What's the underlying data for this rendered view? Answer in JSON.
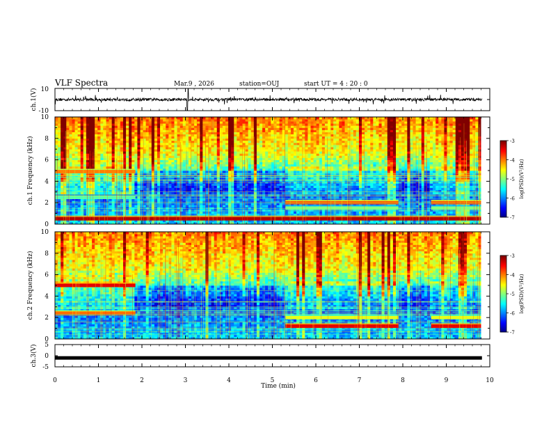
{
  "header": {
    "title": "VLF Spectra",
    "date": "Mar.9 , 2026",
    "station": "station=OUJ",
    "start_ut": "start UT = 4 : 20 : 0"
  },
  "chart_data": [
    {
      "type": "line",
      "panel": "ch1-waveform",
      "ylabel": "ch.1(V)",
      "ylim": [
        -10,
        10
      ],
      "yticks": [
        "10",
        "-10"
      ],
      "xlim": [
        0,
        10
      ],
      "trace_color": "#000000"
    },
    {
      "type": "heatmap",
      "panel": "ch1-spectrogram",
      "ylabel": "ch.1 Frequency (kHz)",
      "ylim": [
        0,
        10
      ],
      "yticks": [
        "0",
        "2",
        "4",
        "6",
        "8",
        "10"
      ],
      "xlim": [
        0,
        9.8
      ],
      "colorbar": {
        "label": "log(PSD)(V²/Hz)",
        "ticks": [
          "-3",
          "-4",
          "-5",
          "-6",
          "-7"
        ],
        "range": [
          -7,
          -3
        ]
      },
      "bands": [
        {
          "t0": 0,
          "t1": 1.85,
          "f": 4.9,
          "level": -4.0
        },
        {
          "t0": 0,
          "t1": 1.85,
          "f": 2.5,
          "level": -5.2
        },
        {
          "t0": 5.3,
          "t1": 7.9,
          "f": 2.0,
          "level": -3.8
        },
        {
          "t0": 5.3,
          "t1": 7.9,
          "f": 1.5,
          "level": -5.0
        },
        {
          "t0": 8.65,
          "t1": 9.8,
          "f": 2.0,
          "level": -3.8
        },
        {
          "t0": 8.65,
          "t1": 9.8,
          "f": 1.5,
          "level": -5.0
        },
        {
          "t0": 0,
          "t1": 9.8,
          "f": 0.5,
          "level": -3.2
        }
      ]
    },
    {
      "type": "heatmap",
      "panel": "ch2-spectrogram",
      "ylabel": "ch.2 Frequency (kHz)",
      "ylim": [
        0,
        10
      ],
      "yticks": [
        "0",
        "2",
        "4",
        "6",
        "8",
        "10"
      ],
      "xlim": [
        0,
        9.8
      ],
      "colorbar": {
        "label": "log(PSD)(V²/Hz)",
        "ticks": [
          "-3",
          "-4",
          "-5",
          "-6",
          "-7"
        ],
        "range": [
          -7,
          -3
        ]
      },
      "bands": [
        {
          "t0": 0,
          "t1": 1.85,
          "f": 5.0,
          "level": -3.4
        },
        {
          "t0": 0,
          "t1": 1.85,
          "f": 2.4,
          "level": -3.8
        },
        {
          "t0": 5.3,
          "t1": 7.9,
          "f": 2.0,
          "level": -4.6
        },
        {
          "t0": 5.3,
          "t1": 7.9,
          "f": 1.2,
          "level": -3.4
        },
        {
          "t0": 8.65,
          "t1": 9.8,
          "f": 2.0,
          "level": -4.6
        },
        {
          "t0": 8.65,
          "t1": 9.8,
          "f": 1.2,
          "level": -3.4
        }
      ]
    },
    {
      "type": "line",
      "panel": "ch3-waveform",
      "ylabel": "ch.3(V)",
      "ylim": [
        -5,
        5
      ],
      "yticks": [
        "5",
        "0",
        "-5"
      ],
      "value": -1.0,
      "xlim": [
        0,
        10
      ]
    }
  ],
  "xaxis": {
    "label": "Time (min)",
    "ticks": [
      "0",
      "1",
      "2",
      "3",
      "4",
      "5",
      "6",
      "7",
      "8",
      "9",
      "10"
    ],
    "range": [
      0,
      10
    ]
  }
}
